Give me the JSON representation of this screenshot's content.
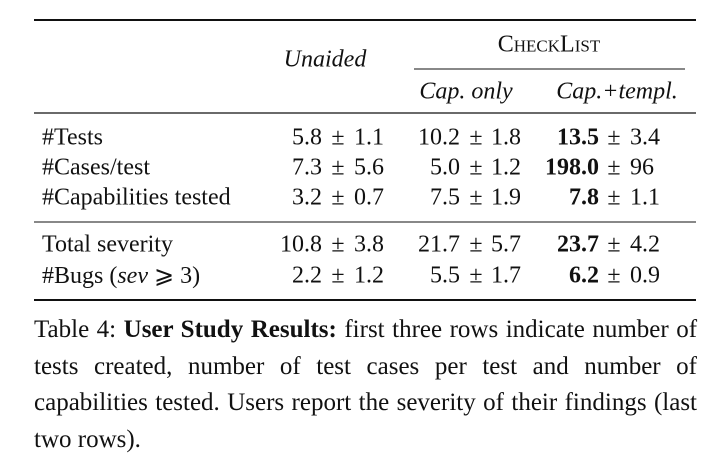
{
  "table": {
    "header": {
      "unaided": "Unaided",
      "group": "CheckList",
      "sub": [
        "Cap. only",
        "Cap.+templ."
      ]
    },
    "plus_minus": "±",
    "rows": [
      {
        "label": "#Tests",
        "cells": [
          {
            "mean": "5.8",
            "sd": "1.1"
          },
          {
            "mean": "10.2",
            "sd": "1.8"
          },
          {
            "mean": "13.5",
            "sd": "3.4",
            "bold": true
          }
        ]
      },
      {
        "label": "#Cases/test",
        "cells": [
          {
            "mean": "7.3",
            "sd": "5.6"
          },
          {
            "mean": "5.0",
            "sd": "1.2"
          },
          {
            "mean": "198.0",
            "sd": "96",
            "bold": true
          }
        ]
      },
      {
        "label": "#Capabilities tested",
        "cells": [
          {
            "mean": "3.2",
            "sd": "0.7"
          },
          {
            "mean": "7.5",
            "sd": "1.9"
          },
          {
            "mean": "7.8",
            "sd": "1.1",
            "bold": true
          }
        ]
      },
      {
        "label": "Total severity",
        "cells": [
          {
            "mean": "10.8",
            "sd": "3.8"
          },
          {
            "mean": "21.7",
            "sd": "5.7"
          },
          {
            "mean": "23.7",
            "sd": "4.2",
            "bold": true
          }
        ]
      },
      {
        "label": [
          {
            "text": "#Bugs ("
          },
          {
            "text": "sev",
            "italic": true
          },
          {
            "text": " ⩾ 3)"
          }
        ],
        "cells": [
          {
            "mean": "2.2",
            "sd": "1.2"
          },
          {
            "mean": "5.5",
            "sd": "1.7"
          },
          {
            "mean": "6.2",
            "sd": "0.9",
            "bold": true
          }
        ]
      }
    ]
  },
  "caption": {
    "label": "Table 4:",
    "title": "User Study Results:",
    "text": "first three rows indicate number of tests created, number of test cases per test and number of capabilities tested. Users report the severity of their findings (last two rows)."
  }
}
